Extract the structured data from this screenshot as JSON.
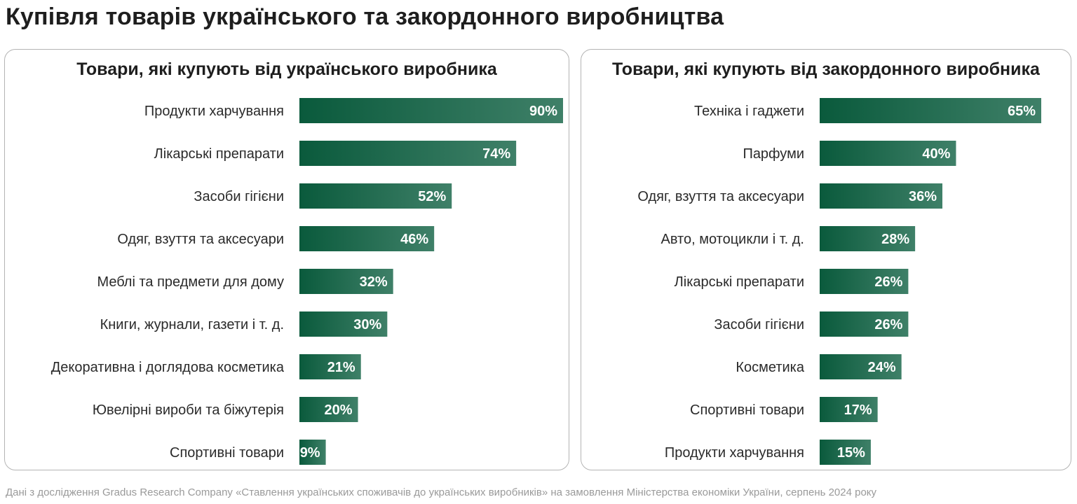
{
  "title": "Купівля товарів українського та закордонного виробництва",
  "footnote": "Дані з дослідження Gradus Research Company «Ставлення українських споживачів до українських виробників» на замовлення Міністерства економіки України, серпень 2024 року",
  "colors": {
    "bar_dark": "#0a5a3c",
    "bar_light": "#3f8068",
    "value_text": "#ffffff",
    "border": "#b4b4b4"
  },
  "chart_data": [
    {
      "type": "bar",
      "orientation": "horizontal",
      "title": "Товари, які купують від українського виробника",
      "categories": [
        "Продукти харчування",
        "Лікарські препарати",
        "Засоби гігієни",
        "Одяг, взуття та аксесуари",
        "Меблі та предмети для дому",
        "Книги, журнали, газети і т. д.",
        "Декоративна і доглядова косметика",
        "Ювелірні вироби та біжутерія",
        "Спортивні товари"
      ],
      "values": [
        90,
        74,
        52,
        46,
        32,
        30,
        21,
        20,
        9
      ],
      "value_labels": [
        "90%",
        "74%",
        "52%",
        "46%",
        "32%",
        "30%",
        "21%",
        "20%",
        "9%"
      ],
      "unit": "%",
      "xlim": [
        0,
        90
      ],
      "grid": false,
      "legend": "none"
    },
    {
      "type": "bar",
      "orientation": "horizontal",
      "title": "Товари, які купують від закордонного виробника",
      "categories": [
        "Техніка і гаджети",
        "Парфуми",
        "Одяг, взуття та аксесуари",
        "Авто, мотоцикли і т. д.",
        "Лікарські препарати",
        "Засоби гігієни",
        "Косметика",
        "Спортивні товари",
        "Продукти харчування"
      ],
      "values": [
        65,
        40,
        36,
        28,
        26,
        26,
        24,
        17,
        15
      ],
      "value_labels": [
        "65%",
        "40%",
        "36%",
        "28%",
        "26%",
        "26%",
        "24%",
        "17%",
        "15%"
      ],
      "unit": "%",
      "xlim": [
        0,
        65
      ],
      "grid": false,
      "legend": "none"
    }
  ]
}
